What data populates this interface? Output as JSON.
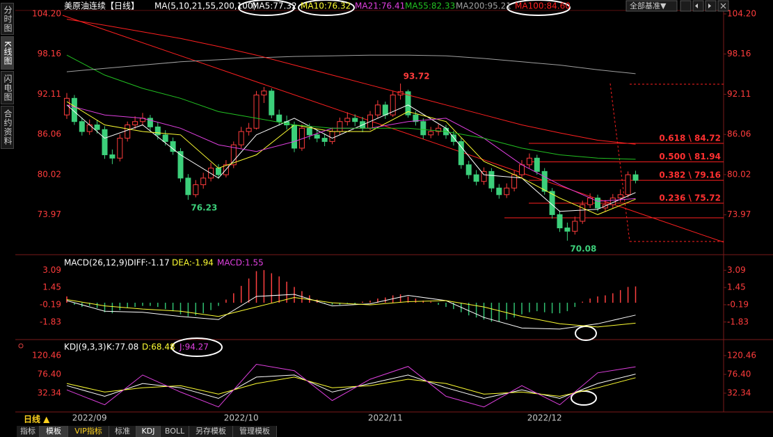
{
  "sidebar_tabs": [
    "分时图",
    "K线图",
    "闪电图",
    "合约资料"
  ],
  "base_selector": "全部基准▼",
  "period_button": "日线 ▲",
  "bottom_tabs": [
    "指标",
    "模板",
    "VIP指标",
    "标准",
    "KDJ",
    "BOLL",
    "另存模板",
    "管理模板"
  ],
  "chart_data": [
    {
      "type": "candlestick",
      "title": "美原油连续【日线】",
      "ma_label": "MA(5,10,21,55,200,100)",
      "categories": [
        null,
        null,
        null,
        "2022/09",
        null,
        null,
        null,
        null,
        null,
        null,
        null,
        null,
        null,
        null,
        null,
        null,
        null,
        null,
        null,
        null,
        null,
        null,
        null,
        "2022/10",
        null,
        null,
        null,
        null,
        null,
        null,
        null,
        null,
        null,
        null,
        null,
        null,
        null,
        null,
        null,
        null,
        null,
        null,
        "2022/11",
        null,
        null,
        null,
        null,
        null,
        null,
        null,
        null,
        null,
        null,
        null,
        null,
        null,
        null,
        null,
        null,
        null,
        null,
        null,
        null,
        "2022/12",
        null,
        null,
        null,
        null,
        null,
        null,
        null,
        null,
        null,
        null,
        null,
        null
      ],
      "open": [
        89.0,
        91.5,
        88.0,
        86.5,
        87.5,
        86.8,
        83.0,
        82.5,
        85.5,
        87.5,
        88.0,
        88.5,
        87.2,
        86.0,
        85.0,
        83.5,
        79.5,
        77.0,
        78.5,
        79.5,
        81.0,
        80.0,
        81.5,
        84.5,
        86.5,
        87.0,
        92.0,
        92.6,
        89.0,
        88.0,
        87.5,
        84.0,
        87.0,
        86.0,
        85.5,
        85.0,
        86.5,
        88.0,
        88.5,
        88.0,
        87.0,
        89.0,
        90.5,
        89.0,
        92.0,
        92.5,
        89.0,
        88.0,
        86.0,
        86.5,
        87.0,
        86.0,
        85.0,
        81.5,
        80.0,
        79.0,
        80.5,
        78.0,
        77.0,
        78.0,
        80.0,
        81.5,
        82.5,
        80.5,
        77.5,
        74.0,
        72.0,
        71.5,
        73.0,
        75.5,
        76.5,
        75.0,
        75.5,
        76.5,
        77.0,
        80.0
      ],
      "high": [
        92.3,
        92.0,
        88.6,
        88.3,
        88.2,
        87.3,
        83.8,
        86.1,
        88.0,
        88.8,
        89.3,
        89.0,
        87.9,
        86.7,
        85.6,
        84.0,
        80.1,
        79.2,
        80.3,
        81.8,
        81.6,
        82.2,
        85.0,
        87.2,
        87.8,
        92.6,
        93.2,
        93.0,
        89.8,
        88.9,
        88.0,
        87.6,
        87.7,
        86.8,
        86.2,
        87.1,
        88.6,
        89.4,
        89.1,
        88.7,
        89.6,
        91.2,
        91.0,
        92.6,
        93.72,
        92.8,
        89.6,
        88.5,
        87.2,
        87.6,
        87.5,
        86.6,
        85.5,
        82.1,
        80.7,
        81.1,
        81.0,
        78.6,
        78.7,
        80.6,
        82.2,
        83.2,
        83.0,
        81.0,
        78.0,
        74.6,
        72.8,
        73.7,
        76.1,
        77.2,
        77.0,
        76.2,
        77.1,
        77.8,
        80.5,
        80.6
      ],
      "low": [
        88.4,
        87.5,
        85.9,
        86.0,
        86.2,
        82.4,
        81.6,
        82.0,
        85.0,
        86.9,
        87.4,
        86.6,
        85.3,
        84.4,
        83.0,
        78.9,
        76.23,
        76.6,
        77.9,
        79.0,
        79.4,
        79.6,
        81.0,
        84.0,
        85.9,
        86.8,
        90.8,
        88.5,
        87.4,
        86.8,
        83.4,
        83.6,
        85.3,
        84.9,
        84.3,
        84.6,
        86.0,
        87.4,
        87.3,
        86.4,
        86.7,
        88.5,
        88.4,
        88.7,
        91.3,
        88.6,
        87.4,
        85.4,
        85.5,
        85.9,
        85.4,
        84.4,
        80.9,
        79.4,
        78.4,
        78.5,
        77.4,
        76.4,
        76.5,
        77.5,
        79.5,
        81.0,
        80.0,
        77.0,
        73.4,
        71.4,
        70.08,
        71.0,
        72.6,
        75.0,
        74.5,
        74.4,
        75.0,
        75.9,
        76.6,
        78.7
      ],
      "close": [
        91.5,
        88.0,
        86.5,
        87.5,
        86.8,
        83.0,
        82.5,
        85.5,
        87.5,
        88.0,
        88.5,
        87.2,
        86.0,
        85.0,
        83.5,
        79.5,
        77.0,
        78.5,
        79.5,
        81.0,
        80.0,
        81.5,
        84.5,
        86.5,
        87.0,
        92.0,
        92.6,
        89.0,
        88.0,
        87.5,
        84.0,
        87.0,
        86.0,
        85.5,
        85.0,
        86.5,
        88.0,
        88.5,
        88.0,
        87.0,
        89.0,
        90.5,
        89.0,
        92.0,
        92.5,
        89.0,
        88.0,
        86.0,
        86.5,
        87.0,
        86.0,
        85.0,
        81.5,
        80.0,
        79.0,
        80.5,
        78.0,
        77.0,
        78.0,
        80.0,
        81.5,
        82.5,
        80.5,
        77.5,
        74.0,
        72.0,
        71.5,
        73.0,
        75.5,
        76.5,
        75.0,
        75.5,
        76.5,
        77.0,
        80.0,
        79.16
      ],
      "up_color": "#ff3c3c",
      "down_color": "#3ccf7a",
      "ylim": [
        68.6,
        104.2
      ],
      "yticks": [
        {
          "value": 104.2,
          "label": "104.20"
        },
        98.16,
        92.11,
        86.06,
        80.02,
        73.97
      ],
      "x": [
        0,
        5,
        10,
        15,
        20,
        25,
        30,
        35,
        40,
        45,
        50,
        55,
        60,
        65,
        70,
        75
      ],
      "series": [
        {
          "name": "MA5:77.32",
          "color": "#ffffff",
          "values": [
            90.5,
            85.5,
            87.5,
            83,
            79.5,
            86,
            88.5,
            85.5,
            88,
            90.5,
            87,
            80,
            79.5,
            74.5,
            74.8,
            77.32
          ]
        },
        {
          "name": "MA10:76.32",
          "color": "#ffff33",
          "values": [
            91,
            87.5,
            86.5,
            86,
            81,
            83,
            87.5,
            86.5,
            86.5,
            89.5,
            88,
            82,
            79.5,
            76.5,
            74,
            76.32
          ]
        },
        {
          "name": "MA21:76.41",
          "color": "#e040e0",
          "values": [
            90.5,
            89,
            88.5,
            87,
            84.5,
            83.5,
            85,
            87,
            87,
            88,
            88.5,
            85.5,
            81.5,
            78.5,
            76,
            76.41
          ]
        },
        {
          "name": "MA55:82.33",
          "color": "#22c022",
          "values": [
            98,
            95,
            93,
            91.5,
            89.5,
            88.5,
            87.5,
            87,
            87,
            87,
            86.5,
            85.5,
            84,
            83,
            82.5,
            82.33
          ]
        },
        {
          "name": "MA200:95.21",
          "color": "#a0a0a0",
          "values": [
            95.5,
            96,
            96.5,
            97,
            97.3,
            97.6,
            97.8,
            97.9,
            98,
            98,
            97.9,
            97.5,
            97,
            96.5,
            95.8,
            95.21
          ]
        },
        {
          "name": "MA100:84.60",
          "color": "#ff2020",
          "values": [
            103.4,
            102.5,
            101.5,
            100.5,
            99.3,
            98,
            96.5,
            95,
            93.5,
            92,
            90.5,
            89,
            87.5,
            86.3,
            85.2,
            84.6
          ]
        }
      ],
      "fib_levels": [
        {
          "value": 84.72,
          "label": "0.618 \\ 84.72"
        },
        {
          "value": 81.94,
          "label": "0.500 \\ 81.94"
        },
        {
          "value": 79.16,
          "label": "0.382 \\ 79.16"
        },
        {
          "value": 75.72,
          "label": "0.236 \\ 75.72"
        }
      ]
    },
    {
      "type": "macd",
      "title": "MACD(26,12,9)",
      "histogram": {
        "name": "MACD:1.55",
        "up_color": "#ff4040",
        "down_color": "#30c070",
        "values": [
          0.6,
          -0.2,
          -0.4,
          -0.3,
          -0.5,
          -0.9,
          -1.0,
          -0.7,
          -0.5,
          -0.4,
          -0.3,
          -0.3,
          -0.4,
          -0.6,
          -0.8,
          -1.1,
          -1.3,
          -1.2,
          -1.0,
          -0.7,
          -0.3,
          0.3,
          0.9,
          1.6,
          2.3,
          3.0,
          3.1,
          2.8,
          2.5,
          2.0,
          1.5,
          1.1,
          0.7,
          0.3,
          -0.1,
          -0.2,
          -0.2,
          -0.1,
          -0.1,
          0.1,
          0.2,
          0.4,
          0.5,
          0.7,
          0.8,
          0.6,
          0.4,
          0.2,
          0.1,
          -0.2,
          -0.4,
          -0.6,
          -0.9,
          -1.2,
          -1.4,
          -1.6,
          -1.8,
          -1.8,
          -1.6,
          -1.4,
          -1.1,
          -0.9,
          -0.8,
          -0.9,
          -1.0,
          -1.0,
          -0.8,
          -0.4,
          0.1,
          0.4,
          0.6,
          0.7,
          0.9,
          1.2,
          1.5,
          1.55
        ]
      },
      "legend_color": "#e040e0",
      "ylim": [
        -2.97,
        4.3
      ],
      "yticks": [
        3.09,
        1.45,
        -0.19,
        -1.83
      ],
      "x": [
        0,
        5,
        10,
        15,
        20,
        25,
        30,
        35,
        40,
        45,
        50,
        55,
        60,
        65,
        70,
        75
      ],
      "series": [
        {
          "name": "DIFF:-1.17",
          "color": "#ffffff",
          "values": [
            0.2,
            -0.8,
            -0.9,
            -1.3,
            -1.6,
            0.6,
            0.8,
            -0.3,
            -0.1,
            0.7,
            0.2,
            -1.4,
            -2.4,
            -2.5,
            -2.0,
            -1.17
          ]
        },
        {
          "name": "DEA:-1.94",
          "color": "#ffff33",
          "values": [
            0.3,
            -0.3,
            -0.6,
            -0.8,
            -1.3,
            -0.4,
            0.5,
            0.0,
            -0.2,
            0.1,
            0.2,
            -0.4,
            -1.3,
            -2.0,
            -2.3,
            -1.94
          ]
        }
      ]
    },
    {
      "type": "line",
      "title": "KDJ(9,3,3)",
      "ylim": [
        -8.5,
        151.5
      ],
      "yticks": [
        120.46,
        {
          "value": 76.4,
          "label": "76.40"
        },
        32.34
      ],
      "x": [
        0,
        5,
        10,
        15,
        20,
        25,
        30,
        35,
        40,
        45,
        50,
        55,
        60,
        65,
        70,
        75
      ],
      "series": [
        {
          "name": "K:77.08",
          "color": "#ffffff",
          "values": [
            50,
            25,
            55,
            45,
            20,
            70,
            75,
            35,
            55,
            75,
            45,
            20,
            40,
            20,
            55,
            77.08
          ]
        },
        {
          "name": "D:68.48",
          "color": "#ffff33",
          "values": [
            55,
            35,
            45,
            50,
            30,
            55,
            70,
            45,
            50,
            65,
            55,
            30,
            35,
            25,
            45,
            68.48
          ]
        },
        {
          "name": "J:94.27",
          "color": "#e040e0",
          "values": [
            40,
            5,
            75,
            35,
            0,
            100,
            85,
            15,
            65,
            95,
            25,
            0,
            50,
            5,
            80,
            94.27
          ]
        }
      ]
    }
  ]
}
